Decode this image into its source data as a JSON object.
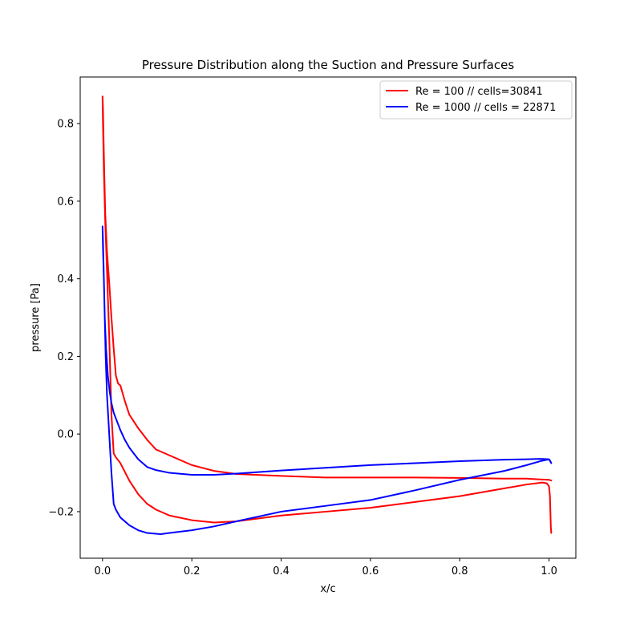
{
  "chart_data": {
    "type": "line",
    "title": "Pressure Distribution along the Suction and Pressure Surfaces",
    "xlabel": "x/c",
    "ylabel": "pressure [Pa]",
    "xlim": [
      -0.05,
      1.06
    ],
    "ylim": [
      -0.32,
      0.92
    ],
    "xticks": [
      "0.0",
      "0.2",
      "0.4",
      "0.6",
      "0.8",
      "1.0"
    ],
    "yticks": [
      "−0.2",
      "0.0",
      "0.2",
      "0.4",
      "0.6",
      "0.8"
    ],
    "xtick_values": [
      0.0,
      0.2,
      0.4,
      0.6,
      0.8,
      1.0
    ],
    "ytick_values": [
      -0.2,
      0.0,
      0.2,
      0.4,
      0.6,
      0.8
    ],
    "grid": false,
    "legend_position": "top-right",
    "series": [
      {
        "name": "Re = 100 // cells=30841",
        "color": "#ff0000",
        "x": [
          1.005,
          1.004,
          1.003,
          1.002,
          1.0,
          0.995,
          0.985,
          0.95,
          0.9,
          0.8,
          0.7,
          0.6,
          0.5,
          0.4,
          0.3,
          0.25,
          0.2,
          0.15,
          0.12,
          0.1,
          0.08,
          0.06,
          0.04,
          0.03,
          0.025,
          0.02,
          0.015,
          0.01,
          0.006,
          0.003,
          0.001,
          0.0,
          0.001,
          0.003,
          0.006,
          0.01,
          0.015,
          0.02,
          0.025,
          0.03,
          0.035,
          0.04,
          0.05,
          0.06,
          0.08,
          0.1,
          0.12,
          0.15,
          0.2,
          0.25,
          0.3,
          0.4,
          0.5,
          0.6,
          0.7,
          0.8,
          0.9,
          0.95,
          0.98,
          1.0,
          1.003,
          1.005
        ],
        "y": [
          -0.255,
          -0.24,
          -0.2,
          -0.16,
          -0.135,
          -0.127,
          -0.125,
          -0.13,
          -0.14,
          -0.16,
          -0.175,
          -0.19,
          -0.2,
          -0.21,
          -0.225,
          -0.228,
          -0.222,
          -0.21,
          -0.195,
          -0.18,
          -0.155,
          -0.12,
          -0.075,
          -0.06,
          -0.05,
          0.05,
          0.25,
          0.42,
          0.55,
          0.68,
          0.8,
          0.87,
          0.84,
          0.72,
          0.57,
          0.47,
          0.39,
          0.3,
          0.22,
          0.15,
          0.13,
          0.125,
          0.085,
          0.05,
          0.015,
          -0.015,
          -0.04,
          -0.055,
          -0.08,
          -0.095,
          -0.103,
          -0.108,
          -0.112,
          -0.112,
          -0.112,
          -0.113,
          -0.115,
          -0.115,
          -0.117,
          -0.118,
          -0.119,
          -0.12
        ]
      },
      {
        "name": "Re = 1000 // cells = 22871",
        "color": "#0000ff",
        "x": [
          1.005,
          1.0,
          0.98,
          0.95,
          0.9,
          0.8,
          0.7,
          0.6,
          0.5,
          0.4,
          0.3,
          0.25,
          0.2,
          0.15,
          0.13,
          0.1,
          0.08,
          0.06,
          0.04,
          0.03,
          0.025,
          0.02,
          0.015,
          0.01,
          0.007,
          0.005,
          0.003,
          0.001,
          0.0,
          0.001,
          0.003,
          0.005,
          0.008,
          0.012,
          0.016,
          0.02,
          0.025,
          0.03,
          0.04,
          0.05,
          0.06,
          0.08,
          0.1,
          0.12,
          0.15,
          0.2,
          0.25,
          0.3,
          0.4,
          0.5,
          0.6,
          0.7,
          0.8,
          0.9,
          0.95,
          0.98,
          1.0,
          1.003,
          1.005
        ],
        "y": [
          -0.075,
          -0.065,
          -0.07,
          -0.08,
          -0.095,
          -0.118,
          -0.145,
          -0.17,
          -0.185,
          -0.2,
          -0.225,
          -0.238,
          -0.248,
          -0.255,
          -0.258,
          -0.255,
          -0.248,
          -0.235,
          -0.215,
          -0.195,
          -0.18,
          -0.1,
          0.0,
          0.1,
          0.2,
          0.3,
          0.4,
          0.48,
          0.535,
          0.5,
          0.4,
          0.3,
          0.22,
          0.15,
          0.11,
          0.08,
          0.055,
          0.04,
          0.01,
          -0.015,
          -0.035,
          -0.065,
          -0.085,
          -0.093,
          -0.1,
          -0.105,
          -0.105,
          -0.102,
          -0.094,
          -0.087,
          -0.08,
          -0.075,
          -0.07,
          -0.066,
          -0.065,
          -0.064,
          -0.065,
          -0.07,
          -0.075
        ]
      }
    ]
  }
}
